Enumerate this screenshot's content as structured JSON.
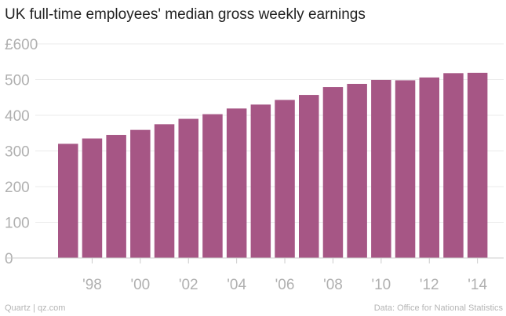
{
  "chart_data": {
    "type": "bar",
    "title": "UK full-time employees' median gross weekly earnings",
    "xlabel": "",
    "ylabel": "",
    "categories": [
      "1997",
      "1998",
      "1999",
      "2000",
      "2001",
      "2002",
      "2003",
      "2004",
      "2005",
      "2006",
      "2007",
      "2008",
      "2009",
      "2010",
      "2011",
      "2012",
      "2013",
      "2014"
    ],
    "values": [
      320,
      335,
      345,
      359,
      375,
      390,
      403,
      419,
      430,
      443,
      457,
      479,
      488,
      499,
      498,
      506,
      518,
      519
    ],
    "x_tick_labels": [
      {
        "category": "1998",
        "label": "'98"
      },
      {
        "category": "2000",
        "label": "'00"
      },
      {
        "category": "2002",
        "label": "'02"
      },
      {
        "category": "2004",
        "label": "'04"
      },
      {
        "category": "2006",
        "label": "'06"
      },
      {
        "category": "2008",
        "label": "'08"
      },
      {
        "category": "2010",
        "label": "'10"
      },
      {
        "category": "2012",
        "label": "'12"
      },
      {
        "category": "2014",
        "label": "'14"
      }
    ],
    "y_ticks": [
      0,
      100,
      200,
      300,
      400,
      500,
      600
    ],
    "y_tick_labels": [
      "0",
      "100",
      "200",
      "300",
      "400",
      "500",
      "£600"
    ],
    "ylim": [
      0,
      600
    ],
    "grid": true,
    "bar_color": "#a65685",
    "grid_color": "#ebebeb",
    "axis_color": "#cccccc",
    "tick_label_color": "#b0b0b0"
  },
  "footer": {
    "left": "Quartz | qz.com",
    "right": "Data: Office for National Statistics"
  }
}
